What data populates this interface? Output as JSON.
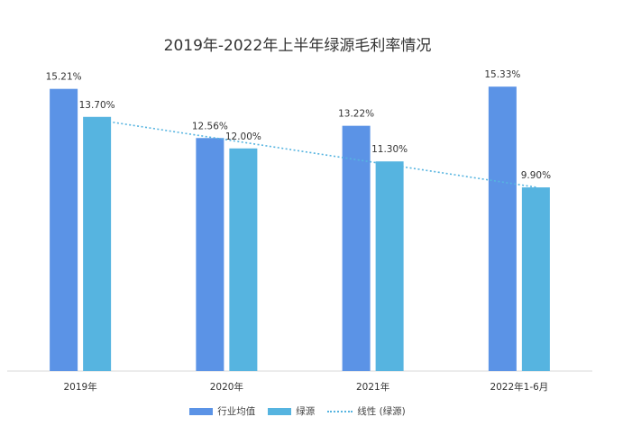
{
  "chart_data": {
    "type": "bar",
    "title": "2019年-2022年上半年绿源毛利率情况",
    "categories": [
      "2019年",
      "2020年",
      "2021年",
      "2022年1-6月"
    ],
    "series": [
      {
        "name": "行业均值",
        "values": [
          15.21,
          12.56,
          13.22,
          15.33
        ],
        "labels": [
          "15.21%",
          "12.56%",
          "13.22%",
          "15.33%"
        ],
        "color": "#5B93E6"
      },
      {
        "name": "绿源",
        "values": [
          13.7,
          12.0,
          11.3,
          9.9
        ],
        "labels": [
          "13.70%",
          "12.00%",
          "11.30%",
          "9.90%"
        ],
        "color": "#56B4E0"
      }
    ],
    "trendline": {
      "name": "线性 (绿源)",
      "of_series": "绿源",
      "type": "linear",
      "style": "dotted",
      "color": "#56B4E0"
    },
    "ylim": [
      0,
      16
    ],
    "grid": false,
    "legend": "bottom"
  }
}
